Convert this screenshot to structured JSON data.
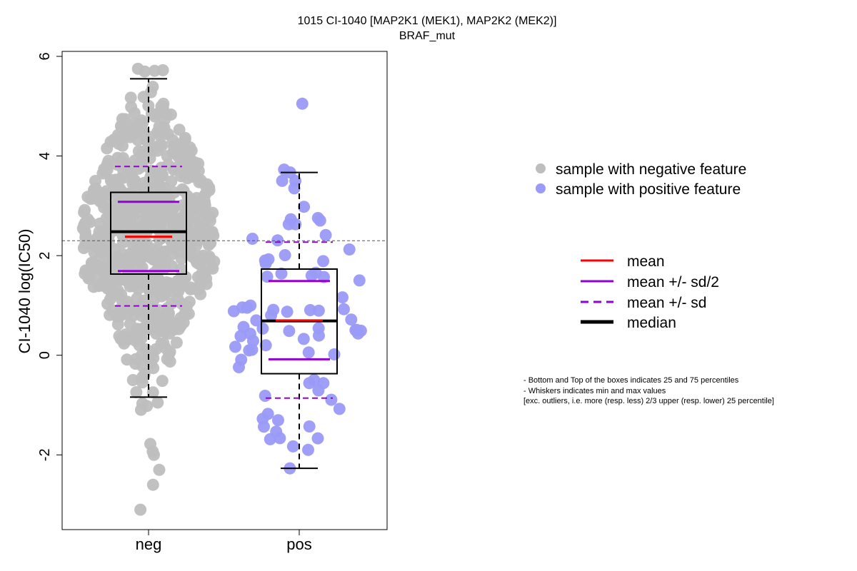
{
  "chart_data": {
    "type": "scatter",
    "title": "1015 CI-1040 [MAP2K1 (MEK1), MAP2K2 (MEK2)]",
    "subtitle": "BRAF_mut",
    "xlabel": "",
    "ylabel": "CI-1040 log(IC50)",
    "categories": [
      "neg",
      "pos"
    ],
    "ylim": [
      -3.5,
      6.1
    ],
    "yticks": [
      -2,
      0,
      2,
      4,
      6
    ],
    "ytick_labels": [
      "-2",
      "0",
      "2",
      "4",
      "6"
    ],
    "reference_line": 2.3,
    "colors": {
      "neg_points": "#bebebe",
      "pos_points": "#9a9af7",
      "mean": "#ff0000",
      "sd": "#9400d3",
      "median": "#000000",
      "reference": "#555555"
    },
    "groups": [
      {
        "name": "neg",
        "n": 700,
        "q1": 1.63,
        "median": 2.48,
        "q3": 3.27,
        "whisker_low": -0.84,
        "whisker_high": 5.55,
        "mean": 2.38,
        "mean_minus_half_sd": 1.69,
        "mean_plus_half_sd": 3.08,
        "mean_minus_sd": 0.99,
        "mean_plus_sd": 3.79,
        "spread": 1.39,
        "range": [
          -3.1,
          5.75
        ],
        "notable_points": [
          5.75,
          -3.1,
          -2.6,
          -2.3,
          -2.0,
          -1.93,
          -1.78
        ]
      },
      {
        "name": "pos",
        "n": 80,
        "q1": -0.37,
        "median": 0.69,
        "q3": 1.73,
        "whisker_low": -2.27,
        "whisker_high": 3.67,
        "mean": 0.7,
        "mean_minus_half_sd": -0.08,
        "mean_plus_half_sd": 1.49,
        "mean_minus_sd": -0.86,
        "mean_plus_sd": 2.27,
        "spread": 1.57,
        "range": [
          -2.27,
          5.05
        ],
        "notable_points": [
          5.05,
          3.67,
          3.5,
          3.35,
          2.98,
          2.73,
          2.63,
          2.63,
          -2.27,
          -1.9,
          -1.83
        ]
      }
    ],
    "legend": {
      "points": [
        {
          "label": "sample with negative feature",
          "color": "#bebebe"
        },
        {
          "label": "sample with positive feature",
          "color": "#9a9af7"
        }
      ],
      "lines": [
        {
          "label": "mean",
          "color": "#ff0000",
          "style": "solid"
        },
        {
          "label": "mean +/- sd/2",
          "color": "#9400d3",
          "style": "solid"
        },
        {
          "label": "mean +/- sd",
          "color": "#9400d3",
          "style": "dashed"
        },
        {
          "label": "median",
          "color": "#000000",
          "style": "bold"
        }
      ]
    },
    "notes": [
      "- Bottom and Top of the boxes indicates 25 and 75 percentiles",
      "- Whiskers indicates min and max values",
      "[exc. outliers, i.e. more (resp. less) 2/3 upper (resp. lower) 25 percentile]"
    ]
  }
}
